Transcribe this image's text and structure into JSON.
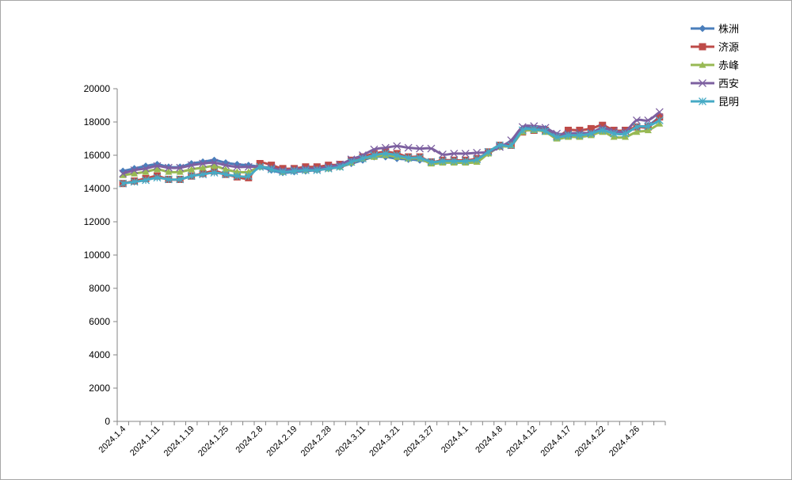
{
  "chart_data": {
    "type": "line",
    "title": "",
    "xlabel": "",
    "ylabel": "",
    "ylim": [
      0,
      20000
    ],
    "yticks": [
      0,
      2000,
      4000,
      6000,
      8000,
      10000,
      12000,
      14000,
      16000,
      18000,
      20000
    ],
    "x_tick_labels": [
      "2024.1.4",
      "2024.1.11",
      "2024.1.19",
      "2024.1.25",
      "2024.2.8",
      "2024.2.19",
      "2024.2.28",
      "2024.3.11",
      "2024.3.21",
      "2024.3.27",
      "2024.4.1",
      "2024.4.8",
      "2024.4.12",
      "2024.4.17",
      "2024.4.22",
      "2024.4.26"
    ],
    "x_tick_every": 3,
    "n_points": 48,
    "grid": false,
    "legend": "right",
    "series": [
      {
        "name": "株洲",
        "color": "#4a7ebb",
        "marker": "diamond",
        "values": [
          15050,
          15200,
          15350,
          15450,
          15300,
          15300,
          15500,
          15600,
          15700,
          15550,
          15450,
          15400,
          15300,
          15100,
          14950,
          15000,
          15050,
          15100,
          15200,
          15300,
          15500,
          15700,
          15900,
          15900,
          15800,
          15750,
          15700,
          15600,
          15650,
          15650,
          15650,
          15700,
          16100,
          16500,
          16700,
          17600,
          17600,
          17600,
          17200,
          17200,
          17300,
          17300,
          17600,
          17500,
          17400,
          17700,
          17800,
          18300
        ]
      },
      {
        "name": "济源",
        "color": "#be4b48",
        "marker": "square",
        "values": [
          14300,
          14450,
          14600,
          14750,
          14550,
          14550,
          14750,
          14900,
          15050,
          14850,
          14700,
          14650,
          15500,
          15400,
          15200,
          15200,
          15300,
          15300,
          15400,
          15450,
          15700,
          15900,
          16100,
          16200,
          16100,
          15900,
          15900,
          15600,
          15700,
          15700,
          15700,
          15800,
          16200,
          16600,
          16600,
          17400,
          17500,
          17500,
          17100,
          17500,
          17500,
          17600,
          17800,
          17500,
          17500,
          17700,
          17700,
          18300
        ]
      },
      {
        "name": "赤峰",
        "color": "#98b954",
        "marker": "triangle",
        "values": [
          14800,
          14900,
          15000,
          15150,
          15000,
          15000,
          15150,
          15250,
          15350,
          15150,
          15000,
          15000,
          15300,
          15200,
          15000,
          15100,
          15100,
          15150,
          15200,
          15300,
          15550,
          15800,
          15900,
          16000,
          15900,
          15800,
          15800,
          15500,
          15550,
          15550,
          15550,
          15600,
          16100,
          16500,
          16600,
          17400,
          17500,
          17400,
          17000,
          17100,
          17100,
          17200,
          17400,
          17100,
          17100,
          17400,
          17500,
          17900
        ]
      },
      {
        "name": "西安",
        "color": "#7d60a0",
        "marker": "x",
        "values": [
          14900,
          15100,
          15200,
          15350,
          15250,
          15250,
          15400,
          15500,
          15550,
          15400,
          15300,
          15300,
          15300,
          15250,
          15100,
          15150,
          15200,
          15200,
          15300,
          15450,
          15750,
          16000,
          16350,
          16450,
          16550,
          16450,
          16400,
          16400,
          16050,
          16100,
          16100,
          16150,
          16200,
          16500,
          16900,
          17700,
          17750,
          17650,
          17300,
          17300,
          17350,
          17350,
          17650,
          17450,
          17450,
          18100,
          18100,
          18600
        ]
      },
      {
        "name": "昆明",
        "color": "#46aac5",
        "marker": "asterisk",
        "values": [
          14300,
          14400,
          14500,
          14650,
          14550,
          14550,
          14750,
          14850,
          14950,
          14850,
          14750,
          14750,
          15300,
          15150,
          15000,
          15050,
          15100,
          15100,
          15200,
          15300,
          15600,
          15800,
          16000,
          16100,
          16000,
          15850,
          15850,
          15600,
          15650,
          15650,
          15650,
          15750,
          16200,
          16600,
          16600,
          17500,
          17550,
          17450,
          17100,
          17200,
          17200,
          17300,
          17500,
          17300,
          17300,
          17700,
          17750,
          18100
        ]
      }
    ]
  }
}
